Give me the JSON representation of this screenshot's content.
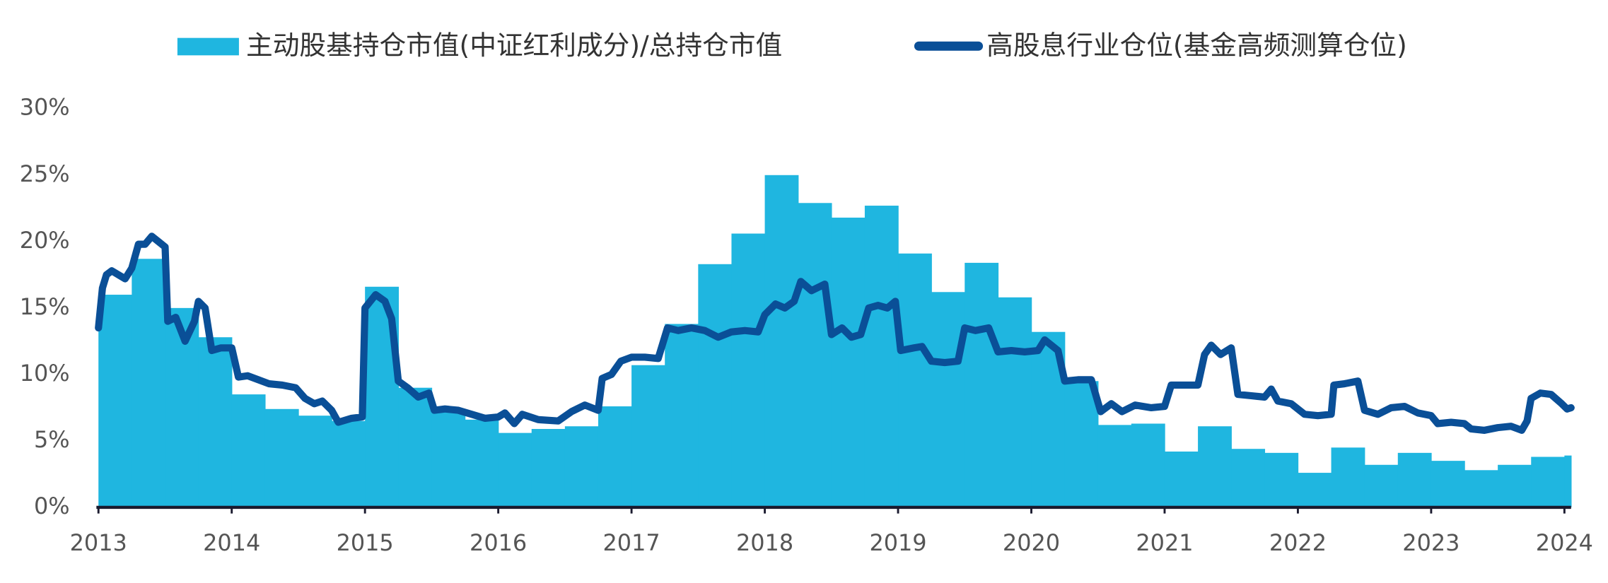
{
  "chart_data": {
    "type": "area_line",
    "series": [
      {
        "name": "主动股基持仓市值(中证红利成分)/总持仓市值",
        "color": "#1fb6e0",
        "style": "step-area",
        "x": [
          2013,
          2013.25,
          2013.5,
          2013.75,
          2014,
          2014.25,
          2014.5,
          2014.75,
          2015,
          2015.25,
          2015.5,
          2015.75,
          2016,
          2016.25,
          2016.5,
          2016.75,
          2017,
          2017.25,
          2017.5,
          2017.75,
          2018,
          2018.25,
          2018.5,
          2018.75,
          2019,
          2019.25,
          2019.5,
          2019.75,
          2020,
          2020.25,
          2020.5,
          2020.75,
          2021,
          2021.25,
          2021.5,
          2021.75,
          2022,
          2022.25,
          2022.5,
          2022.75,
          2023,
          2023.25,
          2023.5,
          2023.75,
          2024
        ],
        "values": [
          16,
          18.7,
          15,
          12.8,
          8.5,
          7.4,
          6.9,
          6.5,
          16.6,
          9,
          7.3,
          6.6,
          5.6,
          5.9,
          6.1,
          7.6,
          10.7,
          13.8,
          18.3,
          20.6,
          25,
          22.9,
          21.8,
          22.7,
          19.1,
          16.2,
          18.4,
          15.8,
          13.2,
          9.5,
          6.2,
          6.3,
          4.2,
          6.1,
          4.4,
          4.1,
          2.6,
          4.5,
          3.2,
          4.1,
          3.5,
          2.8,
          3.2,
          3.8,
          3.9
        ]
      },
      {
        "name": "高股息行业仓位(基金高频测算仓位)",
        "color": "#0a4f97",
        "style": "line",
        "x": [
          2013,
          2013.03,
          2013.06,
          2013.1,
          2013.15,
          2013.2,
          2013.25,
          2013.3,
          2013.35,
          2013.4,
          2013.45,
          2013.5,
          2013.52,
          2013.58,
          2013.65,
          2013.72,
          2013.75,
          2013.8,
          2013.85,
          2013.92,
          2014,
          2014.05,
          2014.12,
          2014.2,
          2014.28,
          2014.38,
          2014.48,
          2014.55,
          2014.62,
          2014.68,
          2014.75,
          2014.8,
          2014.9,
          2014.98,
          2015,
          2015.08,
          2015.15,
          2015.2,
          2015.25,
          2015.32,
          2015.4,
          2015.48,
          2015.52,
          2015.6,
          2015.7,
          2015.8,
          2015.9,
          2016,
          2016.05,
          2016.12,
          2016.18,
          2016.3,
          2016.45,
          2016.55,
          2016.65,
          2016.75,
          2016.78,
          2016.85,
          2016.92,
          2017,
          2017.1,
          2017.2,
          2017.27,
          2017.35,
          2017.45,
          2017.55,
          2017.65,
          2017.75,
          2017.85,
          2017.95,
          2018,
          2018.08,
          2018.15,
          2018.22,
          2018.27,
          2018.35,
          2018.45,
          2018.5,
          2018.58,
          2018.65,
          2018.72,
          2018.78,
          2018.85,
          2018.92,
          2018.98,
          2019.02,
          2019.12,
          2019.18,
          2019.25,
          2019.35,
          2019.45,
          2019.5,
          2019.58,
          2019.68,
          2019.75,
          2019.85,
          2019.95,
          2020.05,
          2020.1,
          2020.2,
          2020.25,
          2020.35,
          2020.45,
          2020.52,
          2020.6,
          2020.68,
          2020.78,
          2020.9,
          2021,
          2021.05,
          2021.15,
          2021.25,
          2021.3,
          2021.35,
          2021.42,
          2021.5,
          2021.55,
          2021.65,
          2021.75,
          2021.8,
          2021.85,
          2021.95,
          2022.05,
          2022.15,
          2022.25,
          2022.27,
          2022.35,
          2022.45,
          2022.5,
          2022.6,
          2022.7,
          2022.8,
          2022.9,
          2023,
          2023.05,
          2023.15,
          2023.25,
          2023.3,
          2023.4,
          2023.5,
          2023.6,
          2023.68,
          2023.72,
          2023.75,
          2023.82,
          2023.9,
          2023.98,
          2024.02,
          2024.05
        ],
        "values": [
          13.5,
          16.5,
          17.5,
          17.8,
          17.5,
          17.2,
          18,
          19.8,
          19.8,
          20.4,
          20,
          19.6,
          14,
          14.3,
          12.5,
          14,
          15.5,
          15,
          11.8,
          12,
          12,
          9.8,
          9.9,
          9.6,
          9.3,
          9.2,
          9,
          8.2,
          7.8,
          8,
          7.3,
          6.4,
          6.7,
          6.8,
          15,
          16,
          15.5,
          14.2,
          9.5,
          9,
          8.3,
          8.6,
          7.3,
          7.4,
          7.3,
          7,
          6.7,
          6.8,
          7.1,
          6.3,
          7,
          6.6,
          6.5,
          7.2,
          7.7,
          7.3,
          9.7,
          10,
          11,
          11.3,
          11.3,
          11.2,
          13.5,
          13.3,
          13.5,
          13.3,
          12.8,
          13.2,
          13.3,
          13.2,
          14.5,
          15.3,
          15,
          15.5,
          17,
          16.3,
          16.8,
          13,
          13.5,
          12.8,
          13,
          15,
          15.2,
          15,
          15.5,
          11.8,
          12,
          12.1,
          11,
          10.9,
          11,
          13.5,
          13.3,
          13.5,
          11.7,
          11.8,
          11.7,
          11.8,
          12.6,
          11.8,
          9.5,
          9.6,
          9.6,
          7.2,
          7.8,
          7.2,
          7.7,
          7.5,
          7.6,
          9.2,
          9.2,
          9.2,
          11.5,
          12.2,
          11.5,
          12,
          8.5,
          8.4,
          8.3,
          8.9,
          8,
          7.8,
          7,
          6.9,
          7,
          9.2,
          9.3,
          9.5,
          7.3,
          7,
          7.5,
          7.6,
          7.1,
          6.9,
          6.3,
          6.4,
          6.3,
          5.9,
          5.8,
          6,
          6.1,
          5.8,
          6.5,
          8.2,
          8.6,
          8.5,
          7.8,
          7.4,
          7.5
        ]
      }
    ],
    "xlim": [
      2013,
      2024.05
    ],
    "xticks": [
      2013,
      2014,
      2015,
      2016,
      2017,
      2018,
      2019,
      2020,
      2021,
      2022,
      2023,
      2024
    ],
    "ylim": [
      0,
      30
    ],
    "yticks": [
      {
        "value": 0,
        "label": "0%"
      },
      {
        "value": 5,
        "label": "5%"
      },
      {
        "value": 10,
        "label": "10%"
      },
      {
        "value": 15,
        "label": "15%"
      },
      {
        "value": 20,
        "label": "20%"
      },
      {
        "value": 25,
        "label": "25%"
      },
      {
        "value": 30,
        "label": "30%"
      }
    ],
    "grid": false,
    "legend": "top"
  }
}
